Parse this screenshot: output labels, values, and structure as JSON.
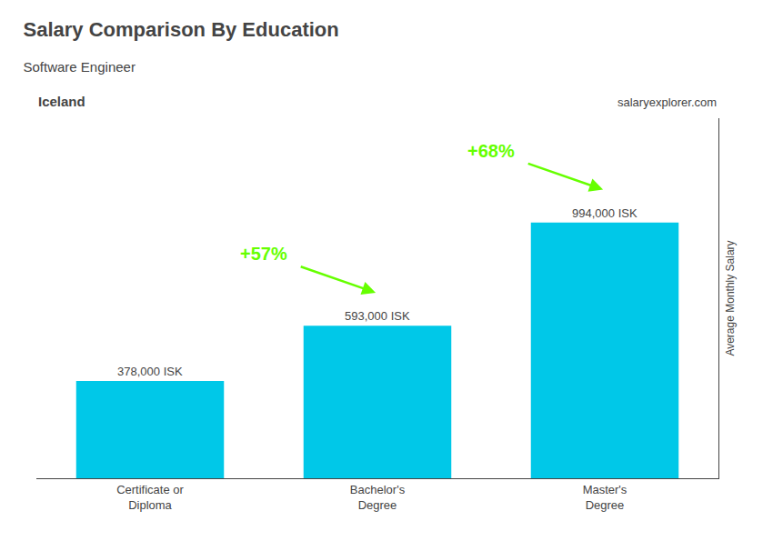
{
  "chart_data": {
    "type": "bar",
    "title": "Salary Comparison By Education",
    "subtitle": "Software Engineer",
    "country": "Iceland",
    "brand": [
      "salary",
      "explorer.com"
    ],
    "ylabel": "Average Monthly Salary",
    "categories": [
      "Certificate or\nDiploma",
      "Bachelor's\nDegree",
      "Master's\nDegree"
    ],
    "values": [
      378000,
      593000,
      994000
    ],
    "value_labels": [
      "378,000 ISK",
      "593,000 ISK",
      "994,000 ISK"
    ],
    "data_labels": true,
    "color": "#00c8e8",
    "annotations": [
      {
        "text": "+57%",
        "color": "#66ff00"
      },
      {
        "text": "+68%",
        "color": "#66ff00"
      }
    ],
    "ylim": [
      0,
      1400000
    ],
    "tick_labels": "x",
    "grid": false
  }
}
